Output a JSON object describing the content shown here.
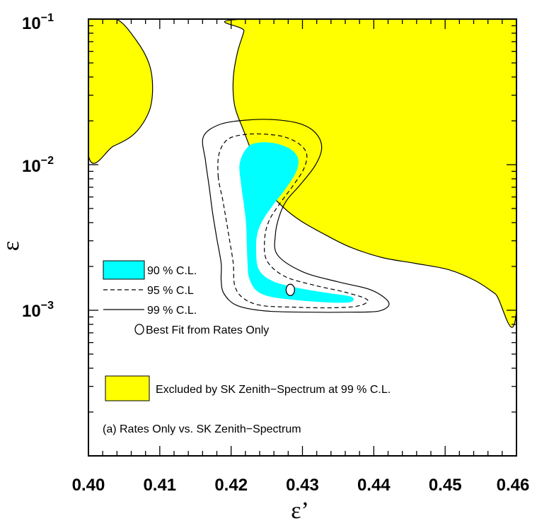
{
  "chart_data": {
    "type": "contour",
    "xlabel": "ε’",
    "ylabel": "ε",
    "xlim": [
      0.4,
      0.46
    ],
    "ylim": [
      0.0001,
      0.1
    ],
    "y_scale": "log",
    "x_ticks": [
      "0.40",
      "0.41",
      "0.42",
      "0.43",
      "0.44",
      "0.45",
      "0.46"
    ],
    "y_ticks": [
      {
        "base": "10",
        "exp": "−1",
        "value": 0.1
      },
      {
        "base": "10",
        "exp": "−2",
        "value": 0.01
      },
      {
        "base": "10",
        "exp": "−3",
        "value": 0.001
      }
    ],
    "colors": {
      "cl90": "#00ffff",
      "excluded": "#ffff00",
      "line": "#000000"
    },
    "regions": [
      {
        "label": "Excluded by SK Zenith−Spectrum at 99 % C.L.",
        "style": "fill-excluded",
        "polygons": [
          [
            [
              0.4,
              0.0116
            ],
            [
              0.4035,
              0.0134
            ],
            [
              0.4065,
              0.0164
            ],
            [
              0.4085,
              0.0232
            ],
            [
              0.409,
              0.0338
            ],
            [
              0.4085,
              0.0494
            ],
            [
              0.4067,
              0.0715
            ],
            [
              0.4039,
              0.1
            ],
            [
              0.4,
              0.1
            ]
          ],
          [
            [
              0.4219,
              0.1
            ],
            [
              0.4218,
              0.0829
            ],
            [
              0.4209,
              0.0593
            ],
            [
              0.4203,
              0.0393
            ],
            [
              0.4205,
              0.0254
            ],
            [
              0.4218,
              0.0169
            ],
            [
              0.4235,
              0.0103
            ],
            [
              0.4252,
              0.0067
            ],
            [
              0.4273,
              0.0051
            ],
            [
              0.4298,
              0.0041
            ],
            [
              0.4332,
              0.0033
            ],
            [
              0.4368,
              0.0027
            ],
            [
              0.4412,
              0.0023
            ],
            [
              0.4458,
              0.0021
            ],
            [
              0.4505,
              0.0019
            ],
            [
              0.4542,
              0.0016
            ],
            [
              0.457,
              0.0013
            ],
            [
              0.46,
              0.00101
            ],
            [
              0.46,
              0.1
            ]
          ]
        ]
      },
      {
        "label": "90 % C.L.",
        "style": "fill-cl90",
        "polygons": [
          [
            [
              0.4212,
              0.0102
            ],
            [
              0.4223,
              0.0132
            ],
            [
              0.424,
              0.0142
            ],
            [
              0.4262,
              0.014
            ],
            [
              0.4283,
              0.0128
            ],
            [
              0.4294,
              0.011
            ],
            [
              0.4291,
              0.0089
            ],
            [
              0.4277,
              0.0069
            ],
            [
              0.4259,
              0.0053
            ],
            [
              0.4245,
              0.0042
            ],
            [
              0.4237,
              0.0034
            ],
            [
              0.4235,
              0.0026
            ],
            [
              0.4239,
              0.0019
            ],
            [
              0.4259,
              0.00158
            ],
            [
              0.4295,
              0.00142
            ],
            [
              0.4337,
              0.00131
            ],
            [
              0.4368,
              0.00124
            ],
            [
              0.4368,
              0.00114
            ],
            [
              0.434,
              0.00113
            ],
            [
              0.4295,
              0.00117
            ],
            [
              0.4255,
              0.00124
            ],
            [
              0.4235,
              0.00137
            ],
            [
              0.4225,
              0.00168
            ],
            [
              0.4223,
              0.0021
            ],
            [
              0.4222,
              0.0028
            ],
            [
              0.4221,
              0.0039
            ],
            [
              0.4218,
              0.0053
            ],
            [
              0.4214,
              0.0073
            ]
          ]
        ]
      },
      {
        "label": "95 % C.L",
        "style": "dashed",
        "polygons": [
          [
            [
              0.4182,
              0.0082
            ],
            [
              0.4183,
              0.0118
            ],
            [
              0.4195,
              0.0149
            ],
            [
              0.4219,
              0.0161
            ],
            [
              0.4247,
              0.0162
            ],
            [
              0.4275,
              0.0155
            ],
            [
              0.4296,
              0.0138
            ],
            [
              0.4306,
              0.0118
            ],
            [
              0.4302,
              0.0094
            ],
            [
              0.4287,
              0.0072
            ],
            [
              0.4267,
              0.0053
            ],
            [
              0.4253,
              0.0041
            ],
            [
              0.4247,
              0.0031
            ],
            [
              0.425,
              0.0022
            ],
            [
              0.4275,
              0.00171
            ],
            [
              0.4318,
              0.00148
            ],
            [
              0.436,
              0.00133
            ],
            [
              0.4391,
              0.00118
            ],
            [
              0.4378,
              0.00107
            ],
            [
              0.434,
              0.00104
            ],
            [
              0.4288,
              0.00105
            ],
            [
              0.4242,
              0.00108
            ],
            [
              0.4217,
              0.00121
            ],
            [
              0.4205,
              0.00148
            ],
            [
              0.4203,
              0.0021
            ],
            [
              0.4198,
              0.003
            ],
            [
              0.4193,
              0.0042
            ],
            [
              0.4188,
              0.0058
            ]
          ]
        ]
      },
      {
        "label": "99 % C.L.",
        "style": "solid",
        "polygons": [
          [
            [
              0.4164,
              0.0107
            ],
            [
              0.4161,
              0.0155
            ],
            [
              0.4183,
              0.0188
            ],
            [
              0.4219,
              0.0202
            ],
            [
              0.4258,
              0.0204
            ],
            [
              0.4295,
              0.0192
            ],
            [
              0.4318,
              0.0166
            ],
            [
              0.4327,
              0.0131
            ],
            [
              0.4318,
              0.0099
            ],
            [
              0.4296,
              0.0072
            ],
            [
              0.4278,
              0.0057
            ],
            [
              0.4268,
              0.0045
            ],
            [
              0.4262,
              0.0033
            ],
            [
              0.4265,
              0.0024
            ],
            [
              0.43,
              0.00184
            ],
            [
              0.4349,
              0.00157
            ],
            [
              0.4396,
              0.00138
            ],
            [
              0.4421,
              0.00113
            ],
            [
              0.4408,
              0.00099
            ],
            [
              0.4365,
              0.00097
            ],
            [
              0.4308,
              0.00097
            ],
            [
              0.4247,
              0.00099
            ],
            [
              0.4208,
              0.00108
            ],
            [
              0.419,
              0.0013
            ],
            [
              0.4186,
              0.0016
            ],
            [
              0.4186,
              0.0021
            ],
            [
              0.418,
              0.0031
            ],
            [
              0.4174,
              0.0047
            ],
            [
              0.4169,
              0.0072
            ]
          ]
        ]
      }
    ],
    "best_fit": {
      "label": "Best Fit from Rates Only",
      "x": 0.4283,
      "y": 0.00138
    },
    "legend": {
      "cl90": "90 % C.L.",
      "cl95": "95 % C.L",
      "cl99": "99 % C.L.",
      "best_fit": "Best Fit from Rates Only",
      "excluded": "Excluded by SK Zenith−Spectrum at 99 % C.L."
    },
    "annotation": "(a) Rates Only vs. SK Zenith−Spectrum"
  }
}
